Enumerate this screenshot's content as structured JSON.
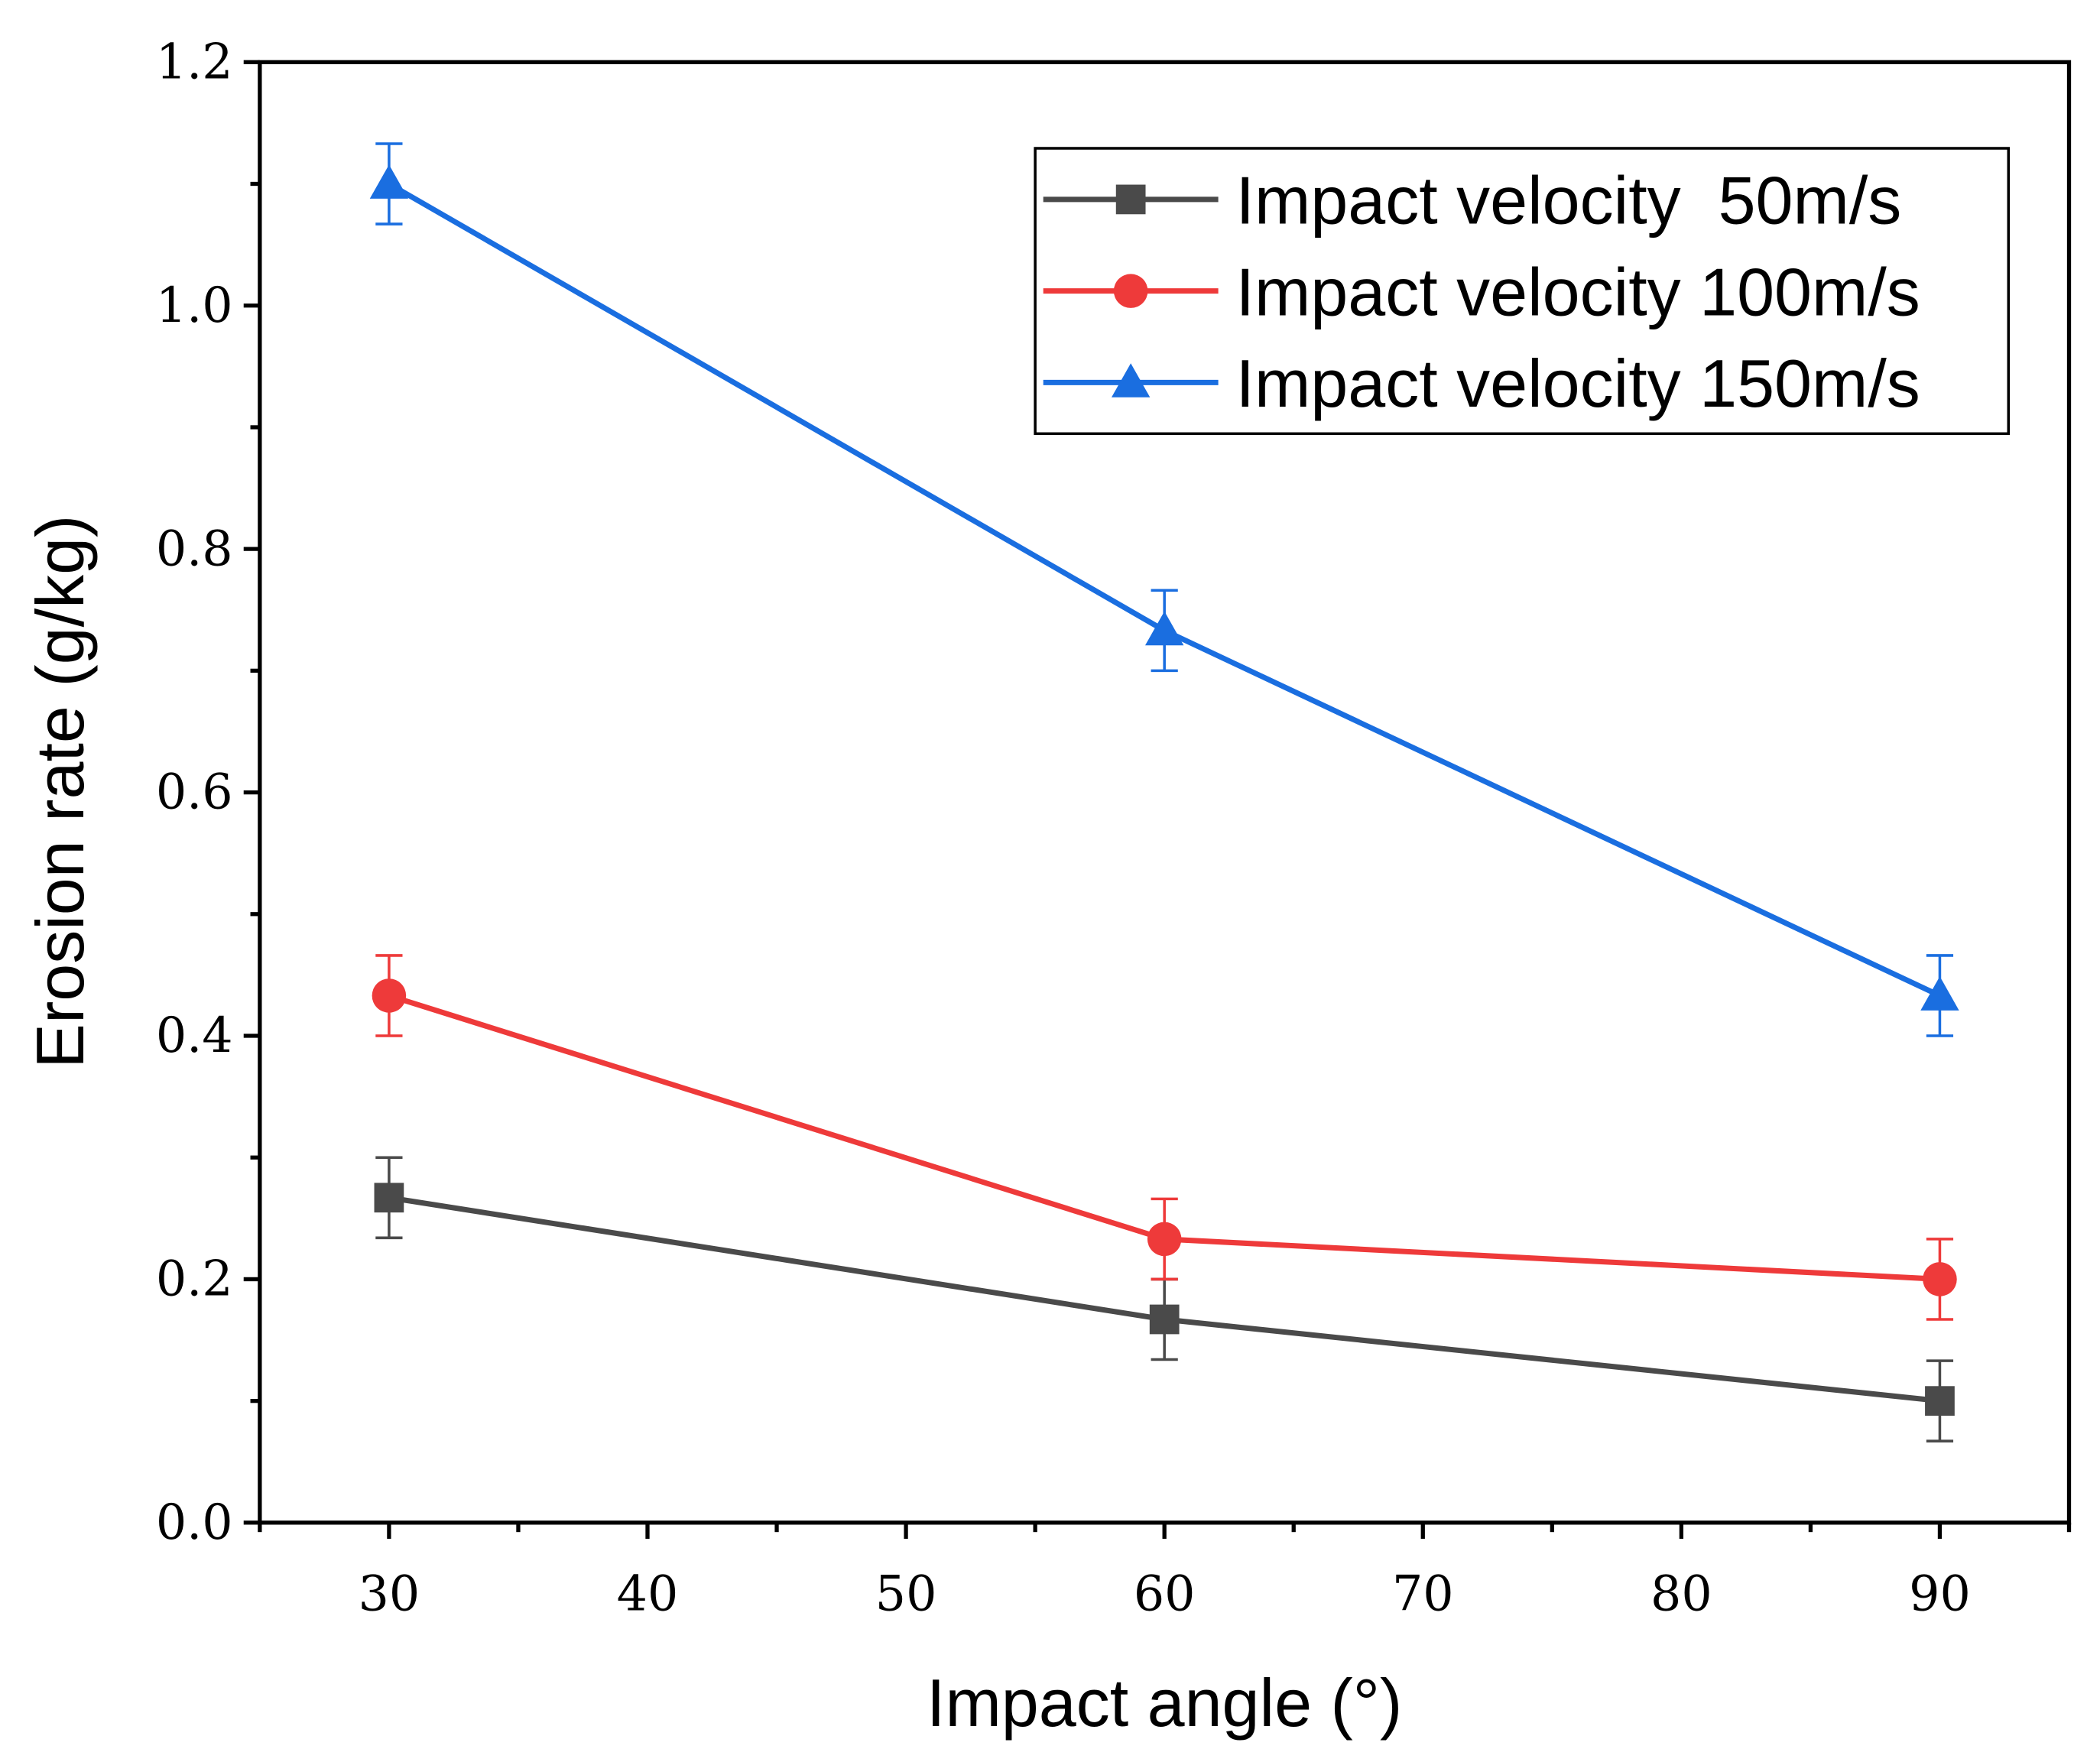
{
  "chart_data": {
    "type": "line",
    "title": "",
    "xlabel": "Impact angle (°)",
    "ylabel": "Erosion rate (g/kg)",
    "xlim": [
      25,
      95
    ],
    "ylim": [
      0,
      1.2
    ],
    "xticks": [
      "30",
      "40",
      "50",
      "60",
      "70",
      "80",
      "90"
    ],
    "yticks": [
      "0.0",
      "0.2",
      "0.4",
      "0.6",
      "0.8",
      "1.0",
      "1.2"
    ],
    "grid": false,
    "legend_position": "top-right",
    "x": [
      30,
      60,
      90
    ],
    "series": [
      {
        "name": "Impact velocity  50m/s",
        "color": "#4a4a4a",
        "marker": "square",
        "values": [
          0.267,
          0.167,
          0.1
        ],
        "errors": [
          0.033,
          0.033,
          0.033
        ]
      },
      {
        "name": "Impact velocity 100m/s",
        "color": "#ee3a3a",
        "marker": "circle",
        "values": [
          0.433,
          0.233,
          0.2
        ],
        "errors": [
          0.033,
          0.033,
          0.033
        ]
      },
      {
        "name": "Impact velocity 150m/s",
        "color": "#1a6ee0",
        "marker": "triangle",
        "values": [
          1.1,
          0.733,
          0.433
        ],
        "errors": [
          0.033,
          0.033,
          0.033
        ]
      }
    ]
  }
}
